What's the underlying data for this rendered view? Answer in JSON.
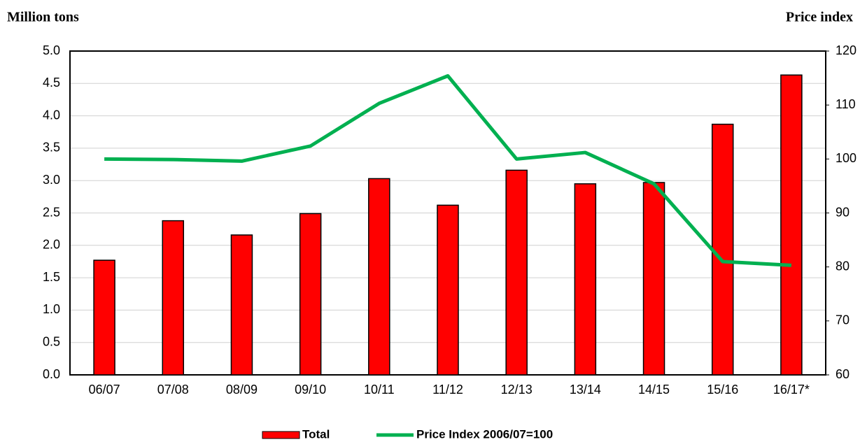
{
  "chart_data": {
    "type": "bar",
    "ylabel": "Million tons",
    "y2label": "Price index",
    "categories": [
      "06/07",
      "07/08",
      "08/09",
      "09/10",
      "10/11",
      "11/12",
      "12/13",
      "13/14",
      "14/15",
      "15/16",
      "16/17*"
    ],
    "series": [
      {
        "name": "Total",
        "type": "bar",
        "color": "#ff0000",
        "values": [
          1.77,
          2.38,
          2.16,
          2.49,
          3.03,
          2.62,
          3.16,
          2.95,
          2.97,
          3.87,
          4.63
        ]
      },
      {
        "name": "Price Index 2006/07=100",
        "type": "line",
        "axis": "y2",
        "color": "#00b050",
        "values": [
          100,
          99.9,
          99.6,
          102.4,
          110.3,
          115.4,
          100,
          101.2,
          95.4,
          81,
          80.3
        ]
      }
    ],
    "ylim": [
      0,
      5
    ],
    "yticks": [
      {
        "value": 0,
        "label": "0.0"
      },
      0.5,
      {
        "value": 1,
        "label": "1.0"
      },
      1.5,
      {
        "value": 2,
        "label": "2.0"
      },
      2.5,
      {
        "value": 3,
        "label": "3.0"
      },
      3.5,
      {
        "value": 4,
        "label": "4.0"
      },
      4.5,
      {
        "value": 5,
        "label": "5.0"
      }
    ],
    "y2lim": [
      60,
      120
    ],
    "y2ticks": [
      60,
      70,
      80,
      90,
      100,
      110,
      120
    ],
    "grid": true,
    "legend": "bottom"
  }
}
